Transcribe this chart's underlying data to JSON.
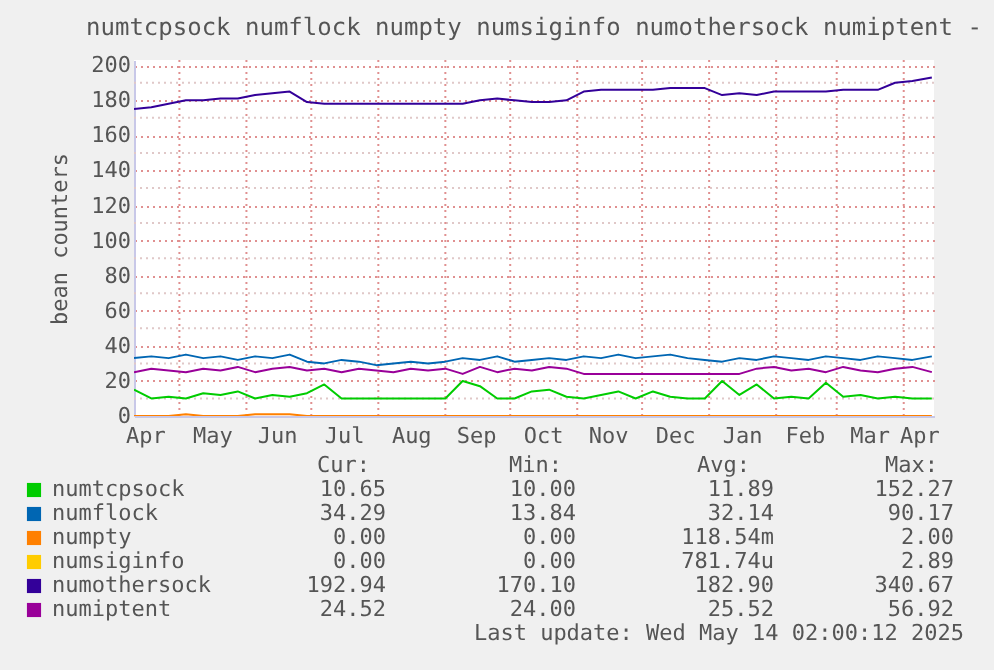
{
  "chart_data": {
    "type": "line",
    "title": "numtcpsock numflock numpty numsiginfo numothersock numiptent -",
    "ylabel": "bean counters",
    "x": [
      "2024-04-10",
      "2024-04-18",
      "2024-04-26",
      "2024-05-04",
      "2024-05-12",
      "2024-05-20",
      "2024-05-28",
      "2024-06-05",
      "2024-06-13",
      "2024-06-21",
      "2024-06-29",
      "2024-07-07",
      "2024-07-15",
      "2024-07-23",
      "2024-07-31",
      "2024-08-08",
      "2024-08-16",
      "2024-08-24",
      "2024-09-01",
      "2024-09-09",
      "2024-09-17",
      "2024-09-25",
      "2024-10-03",
      "2024-10-11",
      "2024-10-19",
      "2024-10-27",
      "2024-11-04",
      "2024-11-12",
      "2024-11-20",
      "2024-11-28",
      "2024-12-06",
      "2024-12-14",
      "2024-12-22",
      "2024-12-30",
      "2025-01-07",
      "2025-01-15",
      "2025-01-23",
      "2025-01-31",
      "2025-02-08",
      "2025-02-16",
      "2025-02-24",
      "2025-03-04",
      "2025-03-12",
      "2025-03-20",
      "2025-03-28",
      "2025-04-05",
      "2025-04-14"
    ],
    "series": [
      {
        "name": "numtcpsock",
        "color": "#00cc00",
        "values": [
          15,
          10,
          11,
          10,
          13,
          12,
          14,
          10,
          12,
          11,
          13,
          18,
          10,
          10,
          10,
          10,
          10,
          10,
          10,
          20,
          17,
          10,
          10,
          14,
          15,
          11,
          10,
          12,
          14,
          10,
          14,
          11,
          10,
          10,
          20,
          12,
          18,
          10,
          11,
          10,
          19,
          11,
          12,
          10,
          11,
          10,
          10
        ]
      },
      {
        "name": "numflock",
        "color": "#0066b3",
        "values": [
          33,
          34,
          33,
          35,
          33,
          34,
          32,
          34,
          33,
          35,
          31,
          30,
          32,
          31,
          29,
          30,
          31,
          30,
          31,
          33,
          32,
          34,
          31,
          32,
          33,
          32,
          34,
          33,
          35,
          33,
          34,
          35,
          33,
          32,
          31,
          33,
          32,
          34,
          33,
          32,
          34,
          33,
          32,
          34,
          33,
          32,
          34
        ]
      },
      {
        "name": "numpty",
        "color": "#ff8000",
        "values": [
          0,
          0,
          0,
          1,
          0,
          0,
          0,
          1,
          1,
          1,
          0,
          0,
          0,
          0,
          0,
          0,
          0,
          0,
          0,
          0,
          0,
          0,
          0,
          0,
          0,
          0,
          0,
          0,
          0,
          0,
          0,
          0,
          0,
          0,
          0,
          0,
          0,
          0,
          0,
          0,
          0,
          0,
          0,
          0,
          0,
          0,
          0
        ]
      },
      {
        "name": "numsiginfo",
        "color": "#ffcc00",
        "values": [
          null,
          null,
          null,
          null,
          null,
          null,
          null,
          null,
          null,
          null,
          null,
          null,
          null,
          null,
          null,
          null,
          null,
          null,
          null,
          null,
          null,
          null,
          null,
          null,
          null,
          null,
          null,
          null,
          null,
          null,
          null,
          null,
          null,
          null,
          null,
          null,
          null,
          null,
          null,
          null,
          null,
          null,
          null,
          null,
          null,
          null,
          null
        ]
      },
      {
        "name": "numothersock",
        "color": "#330099",
        "values": [
          175,
          176,
          178,
          180,
          180,
          181,
          181,
          183,
          184,
          185,
          179,
          178,
          178,
          178,
          178,
          178,
          178,
          178,
          178,
          178,
          180,
          181,
          180,
          179,
          179,
          180,
          185,
          186,
          186,
          186,
          186,
          187,
          187,
          187,
          183,
          184,
          183,
          185,
          185,
          185,
          185,
          186,
          186,
          186,
          190,
          191,
          193
        ]
      },
      {
        "name": "numiptent",
        "color": "#990099",
        "values": [
          25,
          27,
          26,
          25,
          27,
          26,
          28,
          25,
          27,
          28,
          26,
          27,
          25,
          27,
          26,
          25,
          27,
          26,
          27,
          24,
          28,
          25,
          27,
          26,
          28,
          27,
          24,
          24,
          24,
          24,
          24,
          24,
          24,
          24,
          24,
          24,
          27,
          28,
          26,
          27,
          25,
          28,
          26,
          25,
          27,
          28,
          25
        ]
      }
    ],
    "xlim": [
      "2024-04-10",
      "2025-04-15"
    ],
    "xticks": [
      {
        "value": "2024-04-15",
        "label": "Apr"
      },
      {
        "value": "2024-05-01",
        "label": null
      },
      {
        "value": "2024-05-16",
        "label": "May"
      },
      {
        "value": "2024-06-01",
        "label": null
      },
      {
        "value": "2024-06-15",
        "label": "Jun"
      },
      {
        "value": "2024-07-01",
        "label": null
      },
      {
        "value": "2024-07-16",
        "label": "Jul"
      },
      {
        "value": "2024-08-01",
        "label": null
      },
      {
        "value": "2024-08-16",
        "label": "Aug"
      },
      {
        "value": "2024-09-01",
        "label": null
      },
      {
        "value": "2024-09-15",
        "label": "Sep"
      },
      {
        "value": "2024-10-01",
        "label": null
      },
      {
        "value": "2024-10-16",
        "label": "Oct"
      },
      {
        "value": "2024-11-01",
        "label": null
      },
      {
        "value": "2024-11-15",
        "label": "Nov"
      },
      {
        "value": "2024-12-01",
        "label": null
      },
      {
        "value": "2024-12-16",
        "label": "Dec"
      },
      {
        "value": "2025-01-01",
        "label": null
      },
      {
        "value": "2025-01-16",
        "label": "Jan"
      },
      {
        "value": "2025-02-01",
        "label": null
      },
      {
        "value": "2025-02-14",
        "label": "Feb"
      },
      {
        "value": "2025-03-01",
        "label": null
      },
      {
        "value": "2025-03-16",
        "label": "Mar"
      },
      {
        "value": "2025-04-01",
        "label": null
      },
      {
        "value": "2025-04-08",
        "label": "Apr"
      }
    ],
    "ylim": [
      0,
      203
    ],
    "yticks": [
      0,
      {
        "value": 10,
        "label": null
      },
      20,
      {
        "value": 30,
        "label": null
      },
      40,
      {
        "value": 50,
        "label": null
      },
      60,
      {
        "value": 70,
        "label": null
      },
      80,
      {
        "value": 90,
        "label": null
      },
      100,
      {
        "value": 110,
        "label": null
      },
      120,
      {
        "value": 130,
        "label": null
      },
      140,
      {
        "value": 150,
        "label": null
      },
      160,
      {
        "value": 170,
        "label": null
      },
      180,
      {
        "value": 190,
        "label": null
      },
      200
    ],
    "grid": true,
    "legend": "bottom left",
    "line_style": "solid",
    "marker": "none",
    "annotations": [
      "Cur:",
      "Min:",
      "Avg:",
      "Max:",
      "10.65",
      "10.00",
      "11.89",
      "152.27",
      "34.29",
      "13.84",
      "32.14",
      "90.17",
      "0.00",
      "0.00",
      "118.54m",
      "2.00",
      "0.00",
      "0.00",
      "781.74u",
      "2.89",
      "192.94",
      "170.10",
      "182.90",
      "340.67",
      "24.52",
      "24.00",
      "25.52",
      "56.92",
      "Last update: Wed May 14 02:00:12 2025"
    ]
  }
}
